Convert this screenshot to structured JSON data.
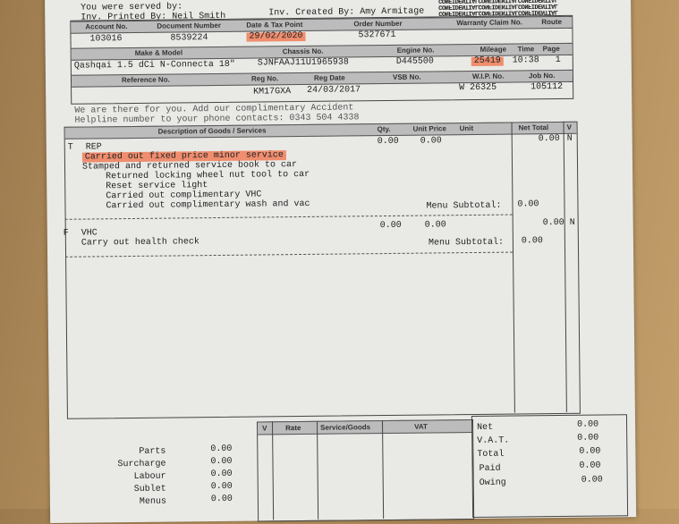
{
  "header": {
    "served_by": "You were served by:",
    "printed_by": "Inv. Printed By: Neil Smith",
    "created_by": "Inv. Created By: Amy Armitage",
    "watermark": "CONFIDENTIALCONFIDENTIALCONFIDENTIAL"
  },
  "info": {
    "row1_labels": [
      "Account No.",
      "Document Number",
      "Date & Tax Point",
      "Order Number",
      "Warranty Claim No.",
      "Route"
    ],
    "row1_values": [
      "103016",
      "8539224",
      "29/02/2020",
      "5327671",
      "",
      ""
    ],
    "row2_labels": [
      "Make & Model",
      "Chassis No.",
      "Engine No.",
      "Mileage",
      "Time",
      "Page"
    ],
    "row2_values": [
      "Qashqai 1.5 dCi N-Connecta 18\"",
      "SJNFAAJ11U1965938",
      "D445500",
      "25419",
      "10:38",
      "1"
    ],
    "row3_labels": [
      "Reference No.",
      "Reg No.",
      "Reg Date",
      "VSB No.",
      "W.I.P. No.",
      "Job No."
    ],
    "row3_values": [
      "",
      "KM17GXA",
      "24/03/2017",
      "",
      "W 26325",
      "105112"
    ]
  },
  "notice": [
    "We are there for you. Add our complimentary Accident",
    "Helpline number to your phone contacts: 0343 504 4338"
  ],
  "items_table": {
    "columns": [
      "Description of Goods / Services",
      "Qty.",
      "Unit Price",
      "Unit",
      "Net Total",
      "V"
    ],
    "items": [
      {
        "flag": "T",
        "code": "REP",
        "qty": "0.00",
        "unit_price": "0.00",
        "net": "0.00",
        "v": "N",
        "lines": [
          "Carried out fixed price minor service",
          "Stamped and returned service book to car",
          "Returned locking wheel nut tool to car",
          "Reset service light",
          "Carried out complimentary VHC",
          "Carried out complimentary wash and vac"
        ],
        "subtotal_label": "Menu Subtotal:",
        "subtotal": "0.00"
      },
      {
        "flag": "F",
        "code": "VHC",
        "qty": "0.00",
        "unit_price": "0.00",
        "net": "0.00",
        "v": "N",
        "lines": [
          "Carry out health check"
        ],
        "subtotal_label": "Menu Subtotal:",
        "subtotal": "0.00"
      }
    ]
  },
  "summary": {
    "left": [
      {
        "label": "Parts",
        "value": "0.00"
      },
      {
        "label": "Surcharge",
        "value": "0.00"
      },
      {
        "label": "Labour",
        "value": "0.00"
      },
      {
        "label": "Sublet",
        "value": "0.00"
      },
      {
        "label": "Menus",
        "value": "0.00"
      }
    ],
    "vat_columns": [
      "V",
      "Rate",
      "Service/Goods",
      "VAT"
    ],
    "totals": [
      {
        "label": "Net",
        "value": "0.00"
      },
      {
        "label": "V.A.T.",
        "value": "0.00"
      },
      {
        "label": "Total",
        "value": "0.00"
      },
      {
        "label": "Paid",
        "value": "0.00"
      },
      {
        "label": "Owing",
        "value": "0.00"
      }
    ]
  },
  "colors": {
    "highlight": "#f06e46",
    "paper": "#e9e9e6"
  }
}
